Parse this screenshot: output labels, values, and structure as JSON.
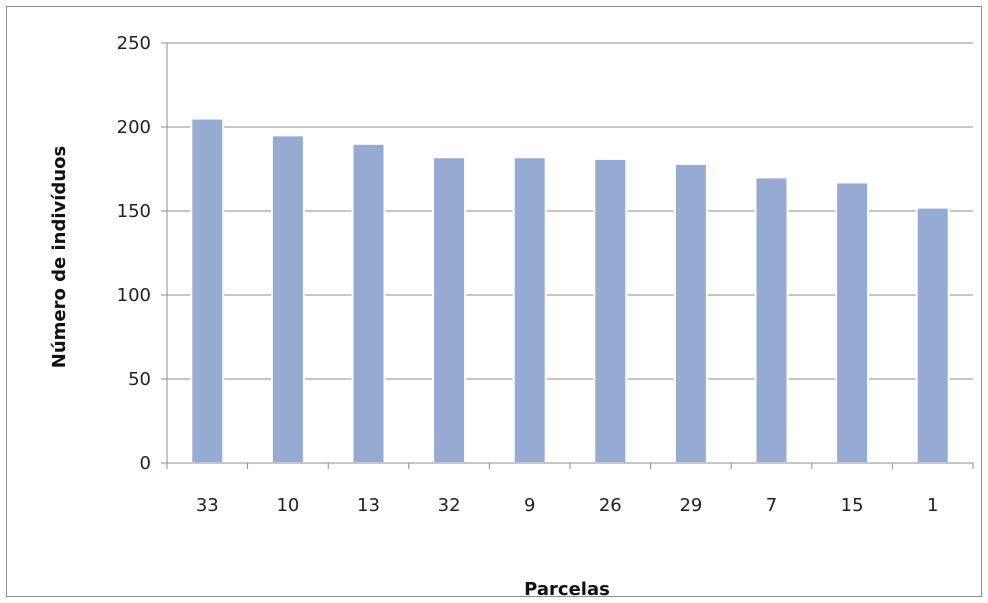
{
  "chart_data": {
    "type": "bar",
    "title": "",
    "xlabel": "Parcelas",
    "ylabel": "Número de indivíduos",
    "categories": [
      "33",
      "10",
      "13",
      "32",
      "9",
      "26",
      "29",
      "7",
      "15",
      "1"
    ],
    "values": [
      205,
      195,
      190,
      182,
      182,
      181,
      178,
      170,
      167,
      152
    ],
    "ylim": [
      0,
      250
    ],
    "yticks": [
      0,
      50,
      100,
      150,
      200,
      250
    ],
    "ytick_labels": [
      "0",
      "50",
      "100",
      "150",
      "200",
      "250"
    ],
    "grid": true,
    "legend": "none",
    "bar_color": "#95abd4",
    "bar_edge_color": "#ffffff"
  }
}
